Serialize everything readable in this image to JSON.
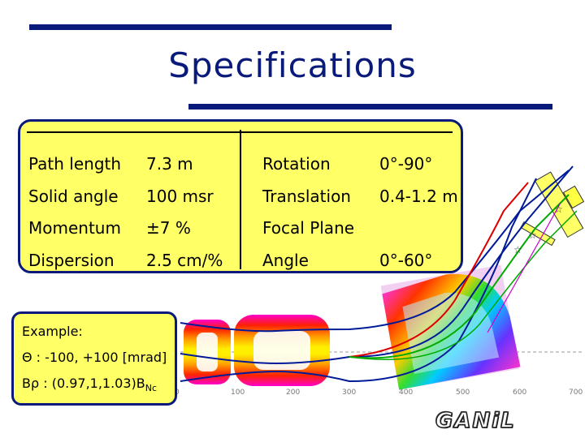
{
  "title": "Specifications",
  "specs": {
    "rows": [
      {
        "label": "Path length",
        "value": "7.3 m",
        "label2": "Rotation",
        "value2": "0°-90°"
      },
      {
        "label": "Solid angle",
        "value": "100 msr",
        "label2": "Translation",
        "value2": "0.4-1.2 m"
      },
      {
        "label": "Momentum",
        "value": "±7 %",
        "label2": "Focal Plane",
        "value2": ""
      },
      {
        "label": "Dispersion",
        "value": "2.5 cm/%",
        "label2": "Angle",
        "value2": "0°-60°"
      }
    ]
  },
  "example": {
    "heading": "Example:",
    "theta": "Θ : -100, +100 [mrad]",
    "brho_prefix": "Bρ : (0.97,1,1.03)B",
    "brho_sub": "Nc"
  },
  "axis": {
    "ticks": [
      "0",
      "100",
      "200",
      "300",
      "400",
      "500",
      "600",
      "700"
    ]
  },
  "logo": {
    "text": "GANiL"
  },
  "colors": {
    "title": "#0a1a7a",
    "box": "#ffff66",
    "border": "#0a1a7a"
  }
}
